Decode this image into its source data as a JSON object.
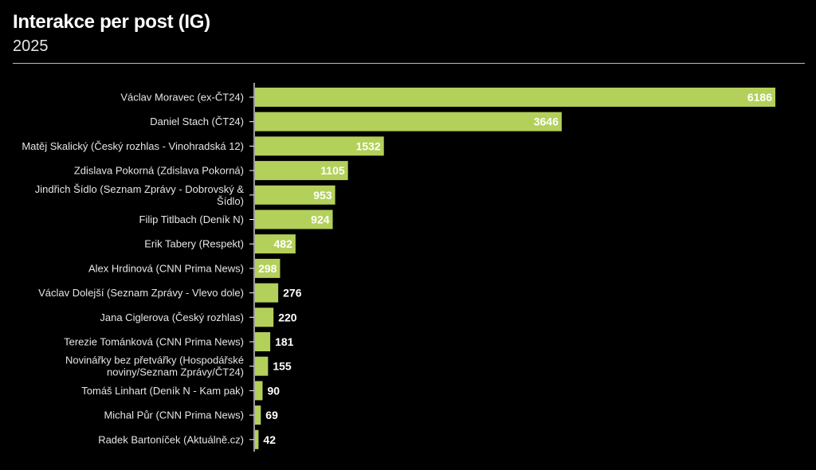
{
  "chart_data": {
    "type": "bar",
    "orientation": "horizontal",
    "title": "Interakce per post (IG)",
    "subtitle": "2025",
    "xlabel": "",
    "ylabel": "",
    "grid": false,
    "xlim": [
      0,
      6186
    ],
    "bar_color": "#b3d05a",
    "categories": [
      [
        "Václav Moravec (ex-ČT24)"
      ],
      [
        "Daniel Stach (ČT24)"
      ],
      [
        "Matěj Skalický (Český rozhlas - Vinohradská 12)"
      ],
      [
        "Zdislava Pokorná (Zdislava Pokorná)"
      ],
      [
        "Jindřich Šídlo (Seznam Zprávy - Dobrovský &",
        "Šídlo)"
      ],
      [
        "Filip Titlbach (Deník N)"
      ],
      [
        "Erik Tabery (Respekt)"
      ],
      [
        "Alex Hrdinová (CNN Prima News)"
      ],
      [
        "Václav Dolejší (Seznam Zprávy - Vlevo dole)"
      ],
      [
        "Jana Ciglerova (Český rozhlas)"
      ],
      [
        "Terezie Tománková (CNN Prima News)"
      ],
      [
        "Novinářky bez přetvářky (Hospodářské",
        "noviny/Seznam Zprávy/ČT24)"
      ],
      [
        "Tomáš Linhart (Deník N - Kam pak)"
      ],
      [
        "Michal Půr (CNN Prima News)"
      ],
      [
        "Radek Bartoníček (Aktuálně.cz)"
      ]
    ],
    "values": [
      6186,
      3646,
      1532,
      1105,
      953,
      924,
      482,
      298,
      276,
      220,
      181,
      155,
      90,
      69,
      42
    ]
  }
}
